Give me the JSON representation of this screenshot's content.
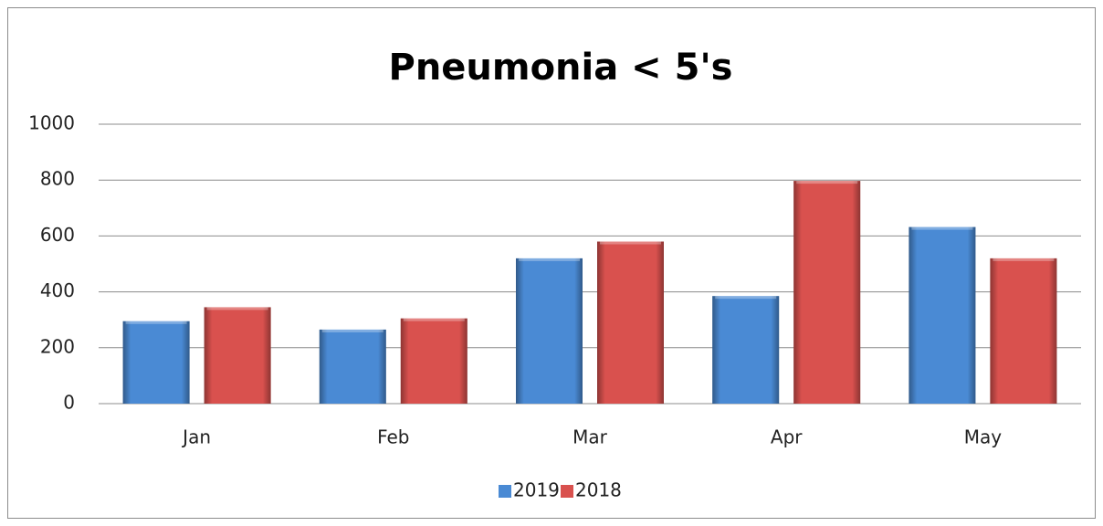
{
  "chart_data": {
    "type": "bar",
    "title": "Pneumonia < 5's",
    "categories": [
      "Jan",
      "Feb",
      "Mar",
      "Apr",
      "May"
    ],
    "series": [
      {
        "name": "2019",
        "color": "#4a8ad4",
        "values": [
          295,
          265,
          520,
          385,
          632
        ]
      },
      {
        "name": "2018",
        "color": "#d9514e",
        "values": [
          345,
          305,
          580,
          797,
          520
        ]
      }
    ],
    "ylim": [
      0,
      1000
    ],
    "yticks": [
      0,
      200,
      400,
      600,
      800,
      1000
    ],
    "grid": true,
    "legend": "bottom"
  }
}
